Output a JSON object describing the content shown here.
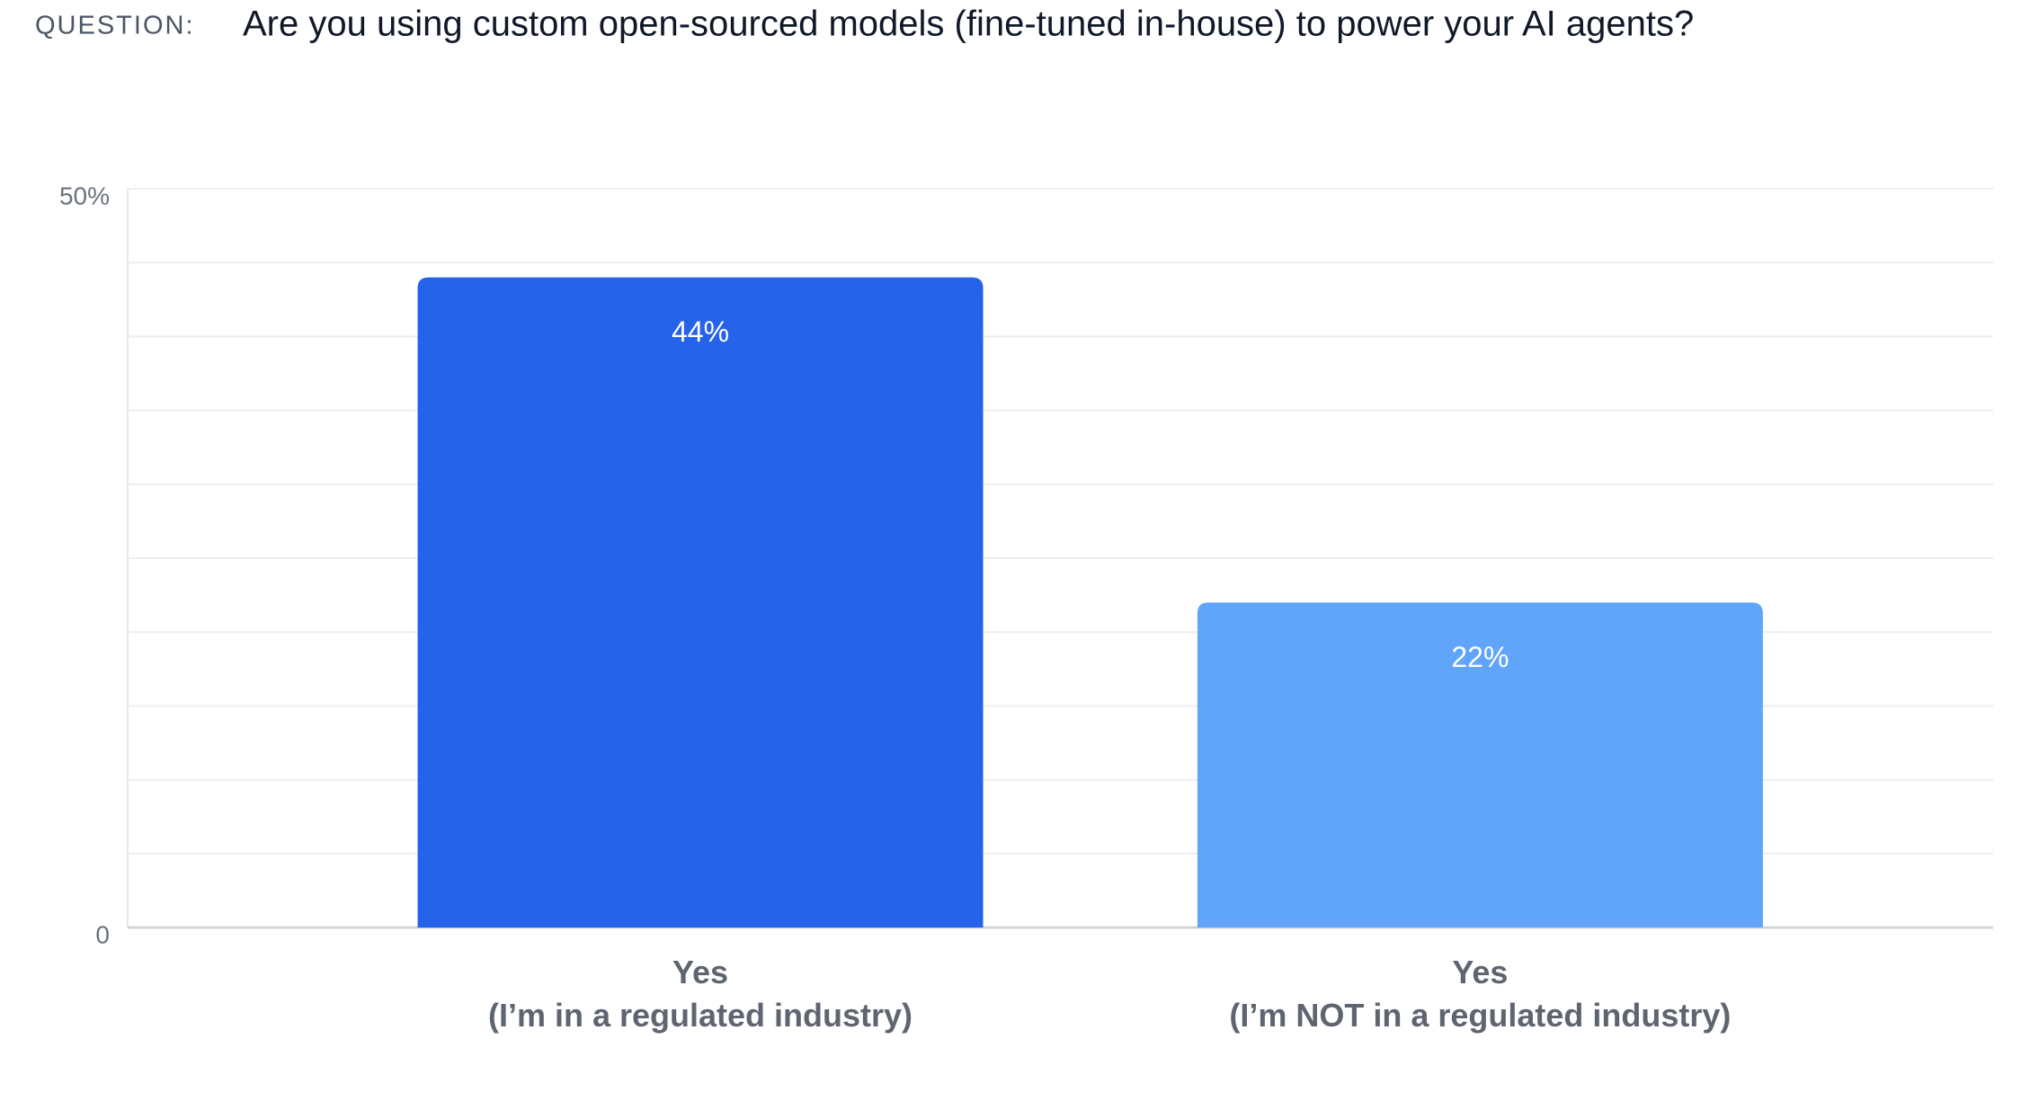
{
  "chart_data": {
    "type": "bar",
    "title_prefix": "QUESTION:",
    "title": "Are you using custom open-sourced models (fine-tuned in-house) to power your AI agents?",
    "categories": [
      "Yes\n(I’m in a regulated industry)",
      "Yes\n(I’m NOT in a regulated industry)"
    ],
    "values": [
      44,
      22
    ],
    "value_labels": [
      "44%",
      "22%"
    ],
    "colors": [
      "#2563eb",
      "#60a5fa"
    ],
    "ylim": [
      0,
      50
    ],
    "yticks": [
      0,
      {
        "value": 5,
        "label": null
      },
      {
        "value": 10,
        "label": null
      },
      {
        "value": 15,
        "label": null
      },
      {
        "value": 20,
        "label": null
      },
      {
        "value": 25,
        "label": null
      },
      {
        "value": 30,
        "label": null
      },
      {
        "value": 35,
        "label": null
      },
      {
        "value": 40,
        "label": null
      },
      {
        "value": 45,
        "label": null
      },
      {
        "value": 50,
        "label": "50%"
      }
    ],
    "grid": true
  }
}
